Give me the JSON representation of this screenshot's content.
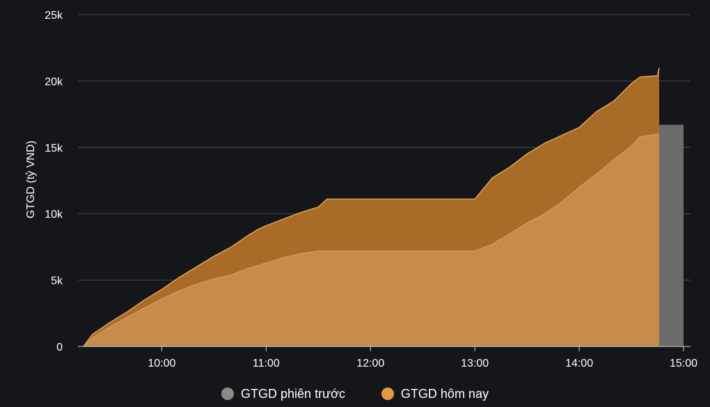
{
  "chart_data": {
    "type": "area",
    "ylabel": "GTGD (tỷ VND)",
    "xlabel": "",
    "ylim": [
      0,
      25000
    ],
    "y_ticks": [
      0,
      5000,
      10000,
      15000,
      20000,
      25000
    ],
    "y_tick_labels": [
      "0",
      "5k",
      "10k",
      "15k",
      "20k",
      "25k"
    ],
    "x_ticks": [
      "10:00",
      "11:00",
      "12:00",
      "13:00",
      "14:00",
      "15:00"
    ],
    "grid": true,
    "legend_position": "bottom",
    "series": [
      {
        "name": "GTGD phiên trước",
        "color": "#6b6b6b",
        "type": "bar",
        "x": "14:45–15:00",
        "value": 16700
      },
      {
        "name": "GTGD hôm nay",
        "color": "#e39a45",
        "type": "area",
        "x": [
          "09:15",
          "09:20",
          "09:30",
          "09:40",
          "09:50",
          "10:00",
          "10:10",
          "10:20",
          "10:30",
          "10:40",
          "10:50",
          "10:55",
          "11:00",
          "11:10",
          "11:20",
          "11:30",
          "11:35",
          "12:00",
          "12:30",
          "13:00",
          "13:10",
          "13:20",
          "13:30",
          "13:40",
          "13:50",
          "14:00",
          "14:10",
          "14:20",
          "14:30",
          "14:35",
          "14:45",
          "14:46"
        ],
        "upper": [
          0,
          900,
          1800,
          2600,
          3500,
          4300,
          5200,
          6000,
          6800,
          7500,
          8400,
          8800,
          9100,
          9600,
          10100,
          10500,
          11100,
          11100,
          11100,
          11100,
          12700,
          13500,
          14500,
          15300,
          15900,
          16500,
          17700,
          18500,
          19800,
          20300,
          20400,
          21000
        ],
        "lower": [
          0,
          650,
          1500,
          2200,
          2900,
          3600,
          4200,
          4700,
          5100,
          5400,
          5900,
          6100,
          6300,
          6700,
          7000,
          7200,
          7200,
          7200,
          7200,
          7200,
          7700,
          8500,
          9300,
          10000,
          10900,
          12000,
          13000,
          14100,
          15100,
          15800,
          16000,
          16000
        ]
      }
    ]
  }
}
